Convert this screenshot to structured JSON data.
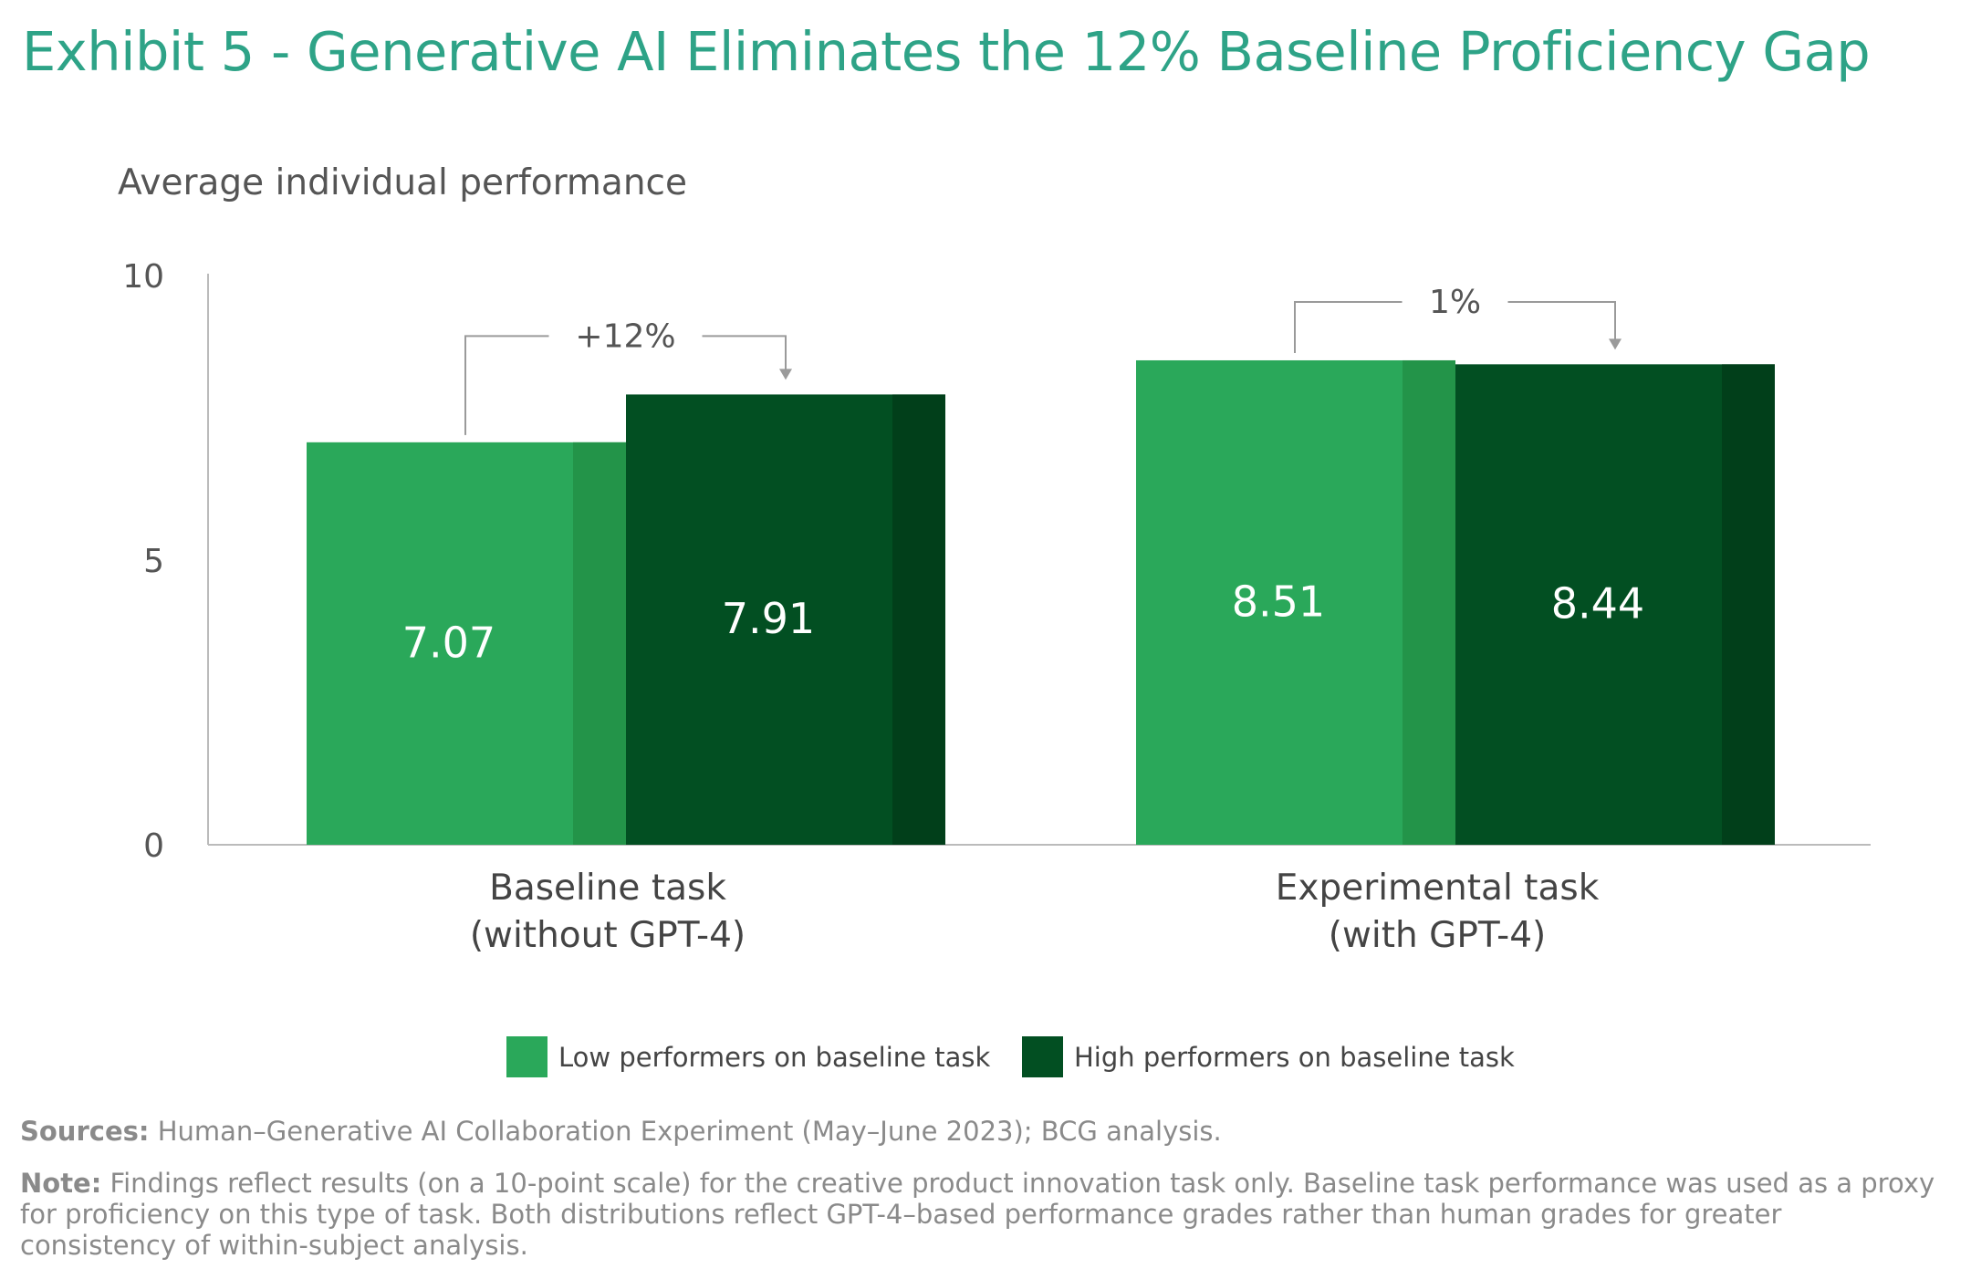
{
  "title": "Exhibit 5 - Generative AI Eliminates the 12% Baseline Proficiency Gap",
  "colors": {
    "title": "#2ea387",
    "low": "#2aa85a",
    "low_side": "#239449",
    "high": "#024f22",
    "high_side": "#013f1a",
    "axis": "#bbbbbb",
    "bracket": "#9a9a9a",
    "muted": "#8a8a8a"
  },
  "chart_data": {
    "type": "bar",
    "ylabel": "Average individual performance",
    "ylim": [
      0,
      10
    ],
    "yticks": [
      "0",
      "5",
      "10"
    ],
    "categories": [
      {
        "line1": "Baseline task",
        "line2": "(without GPT-4)"
      },
      {
        "line1": "Experimental task",
        "line2": "(with GPT-4)"
      }
    ],
    "series": [
      {
        "name": "Low performers on baseline task",
        "values": [
          7.07,
          8.51
        ],
        "labels": [
          "7.07",
          "8.51"
        ]
      },
      {
        "name": "High performers on baseline task",
        "values": [
          7.91,
          8.44
        ],
        "labels": [
          "7.91",
          "8.44"
        ]
      }
    ],
    "annotations": [
      "+12%",
      "1%"
    ],
    "legend_position": "bottom"
  },
  "footnotes": {
    "sources_label": "Sources:",
    "sources_text": " Human–Generative AI Collaboration Experiment (May–June 2023); BCG analysis.",
    "note_label": "Note:",
    "note_text": " Findings reflect results (on a 10-point scale) for the creative product innovation task only. Baseline task performance was used as a proxy for proficiency on this type of task. Both distributions reflect GPT-4–based performance grades rather than human grades for greater consistency of within-subject analysis."
  }
}
